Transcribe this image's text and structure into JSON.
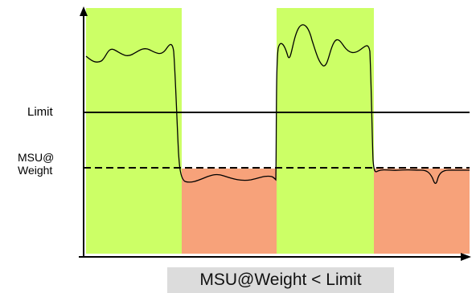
{
  "labels": {
    "limit": "Limit",
    "msu_weight": "MSU@\nWeight",
    "caption": "MSU@Weight < Limit"
  },
  "colors": {
    "high_region": "#ccff66",
    "low_region": "#f7a27a",
    "axis": "#000000",
    "caption_bg": "#dcdcdc"
  },
  "series": {
    "regions": [
      "high",
      "low",
      "high",
      "low"
    ],
    "lines": [
      "Limit (solid)",
      "MSU@Weight (dashed)"
    ]
  }
}
